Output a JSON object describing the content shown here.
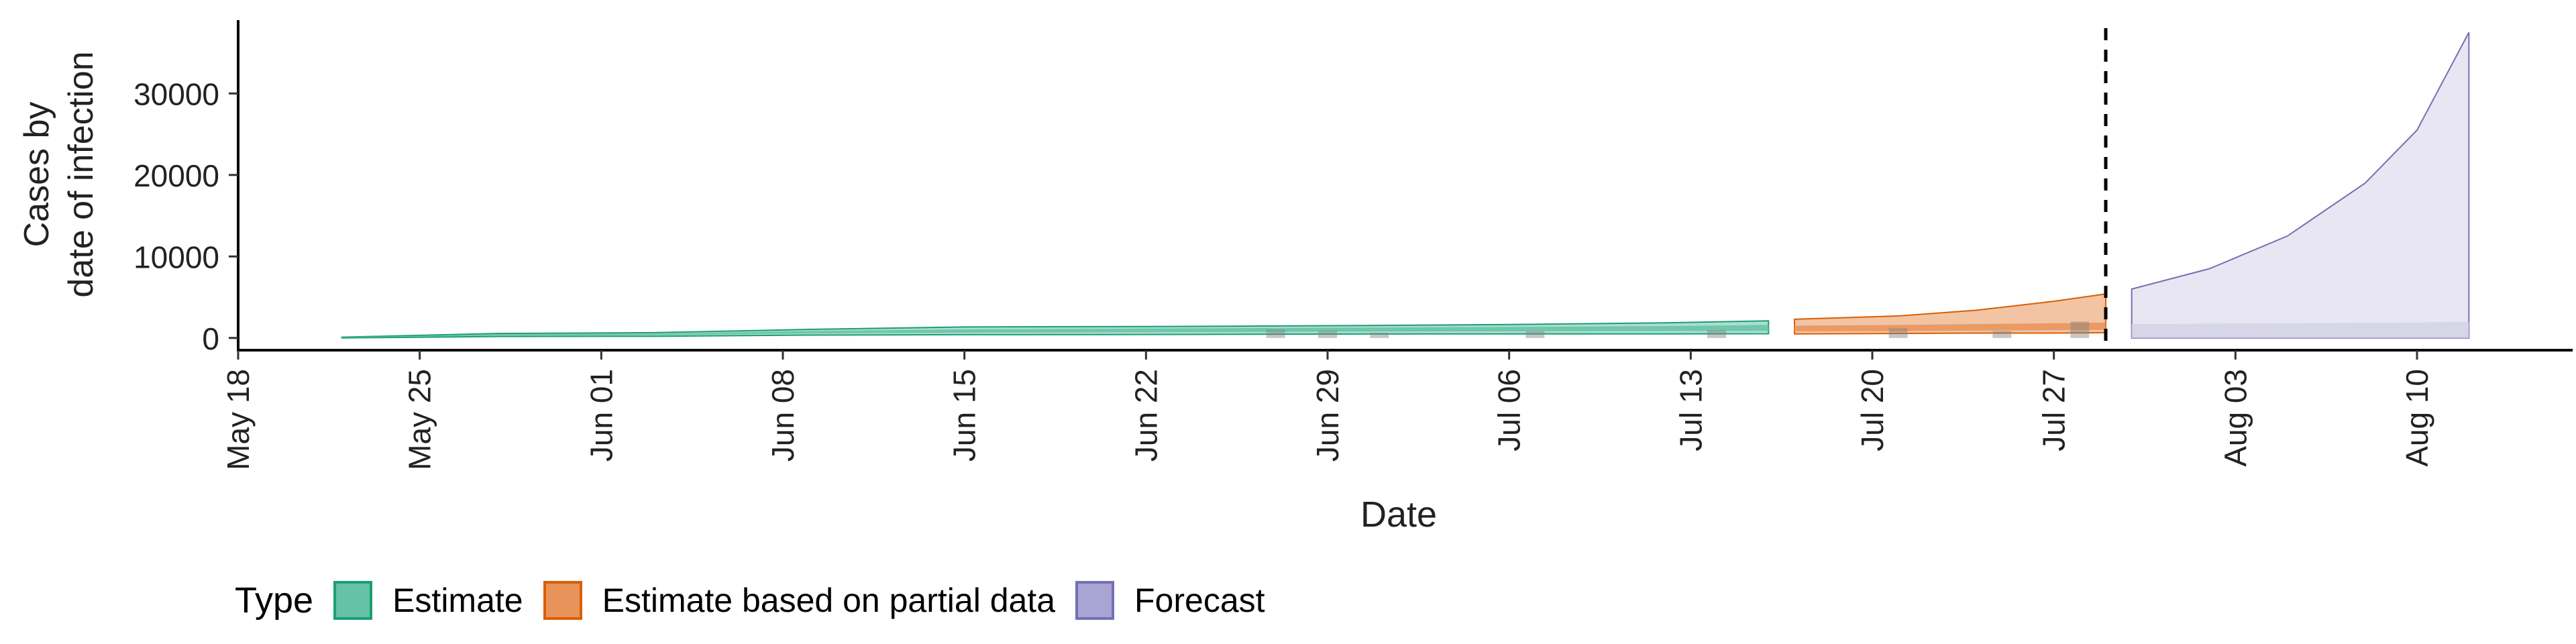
{
  "chart_data": {
    "type": "area",
    "title": "",
    "xlabel": "Date",
    "ylabel_lines": [
      "Cases by",
      "date of infection"
    ],
    "x_range": [
      "2020-05-18",
      "2020-08-16"
    ],
    "y_range": [
      -1500,
      39000
    ],
    "y_ticks": [
      0,
      10000,
      20000,
      30000
    ],
    "x_ticks": [
      {
        "date": "2020-05-18",
        "label": "May 18"
      },
      {
        "date": "2020-05-25",
        "label": "May 25"
      },
      {
        "date": "2020-06-01",
        "label": "Jun 01"
      },
      {
        "date": "2020-06-08",
        "label": "Jun 08"
      },
      {
        "date": "2020-06-15",
        "label": "Jun 15"
      },
      {
        "date": "2020-06-22",
        "label": "Jun 22"
      },
      {
        "date": "2020-06-29",
        "label": "Jun 29"
      },
      {
        "date": "2020-07-06",
        "label": "Jul 06"
      },
      {
        "date": "2020-07-13",
        "label": "Jul 13"
      },
      {
        "date": "2020-07-20",
        "label": "Jul 20"
      },
      {
        "date": "2020-07-27",
        "label": "Jul 27"
      },
      {
        "date": "2020-08-03",
        "label": "Aug 03"
      },
      {
        "date": "2020-08-10",
        "label": "Aug 10"
      }
    ],
    "report_date": "2020-07-29",
    "series": [
      {
        "name": "Estimate",
        "color": "#1b9e77",
        "fill": "#66c2a5",
        "points": [
          {
            "date": "2020-05-22",
            "lower": 0,
            "upper": 100,
            "mid_lower": 20,
            "mid_upper": 80
          },
          {
            "date": "2020-05-28",
            "lower": 180,
            "upper": 550,
            "mid_lower": 300,
            "mid_upper": 450
          },
          {
            "date": "2020-06-03",
            "lower": 200,
            "upper": 650,
            "mid_lower": 330,
            "mid_upper": 520
          },
          {
            "date": "2020-06-09",
            "lower": 350,
            "upper": 1050,
            "mid_lower": 550,
            "mid_upper": 850
          },
          {
            "date": "2020-06-15",
            "lower": 400,
            "upper": 1350,
            "mid_lower": 650,
            "mid_upper": 1050
          },
          {
            "date": "2020-06-22",
            "lower": 420,
            "upper": 1400,
            "mid_lower": 700,
            "mid_upper": 1150
          },
          {
            "date": "2020-06-29",
            "lower": 480,
            "upper": 1500,
            "mid_lower": 780,
            "mid_upper": 1250
          },
          {
            "date": "2020-07-06",
            "lower": 500,
            "upper": 1650,
            "mid_lower": 820,
            "mid_upper": 1350
          },
          {
            "date": "2020-07-12",
            "lower": 500,
            "upper": 1850,
            "mid_lower": 850,
            "mid_upper": 1450
          },
          {
            "date": "2020-07-16",
            "lower": 520,
            "upper": 2100,
            "mid_lower": 880,
            "mid_upper": 1600
          }
        ]
      },
      {
        "name": "Estimate based on partial data",
        "color": "#d95f02",
        "fill": "#e8935a",
        "points": [
          {
            "date": "2020-07-17",
            "lower": 500,
            "upper": 2300,
            "mid_lower": 800,
            "mid_upper": 1500
          },
          {
            "date": "2020-07-21",
            "lower": 550,
            "upper": 2700,
            "mid_lower": 850,
            "mid_upper": 1600
          },
          {
            "date": "2020-07-24",
            "lower": 600,
            "upper": 3400,
            "mid_lower": 900,
            "mid_upper": 1700
          },
          {
            "date": "2020-07-27",
            "lower": 600,
            "upper": 4500,
            "mid_lower": 950,
            "mid_upper": 1800
          },
          {
            "date": "2020-07-29",
            "lower": 650,
            "upper": 5400,
            "mid_lower": 1000,
            "mid_upper": 1900
          }
        ]
      },
      {
        "name": "Forecast",
        "color": "#7570b3",
        "fill": "#d4d2e8",
        "points": [
          {
            "date": "2020-07-30",
            "lower": 0,
            "upper": 6000,
            "mid_lower": 0,
            "mid_upper": 1700
          },
          {
            "date": "2020-08-02",
            "lower": 0,
            "upper": 8500,
            "mid_lower": 0,
            "mid_upper": 1750
          },
          {
            "date": "2020-08-05",
            "lower": 0,
            "upper": 12500,
            "mid_lower": 0,
            "mid_upper": 1800
          },
          {
            "date": "2020-08-08",
            "lower": 0,
            "upper": 19000,
            "mid_lower": 0,
            "mid_upper": 1850
          },
          {
            "date": "2020-08-10",
            "lower": 0,
            "upper": 25500,
            "mid_lower": 0,
            "mid_upper": 1900
          },
          {
            "date": "2020-08-12",
            "lower": 0,
            "upper": 37500,
            "mid_lower": 0,
            "mid_upper": 2000
          }
        ]
      }
    ],
    "observed_bars": [
      {
        "date": "2020-06-27",
        "value": 1050
      },
      {
        "date": "2020-06-29",
        "value": 900
      },
      {
        "date": "2020-07-01",
        "value": 650
      },
      {
        "date": "2020-07-07",
        "value": 850
      },
      {
        "date": "2020-07-14",
        "value": 950
      },
      {
        "date": "2020-07-21",
        "value": 1200
      },
      {
        "date": "2020-07-25",
        "value": 850
      },
      {
        "date": "2020-07-28",
        "value": 2000
      }
    ]
  },
  "legend": {
    "title": "Type",
    "items": [
      {
        "label": "Estimate",
        "fill": "#66c2a5",
        "stroke": "#1b9e77"
      },
      {
        "label": "Estimate based on partial data",
        "fill": "#e8935a",
        "stroke": "#d95f02"
      },
      {
        "label": "Forecast",
        "fill": "#a9a4d4",
        "stroke": "#7570b3"
      }
    ]
  }
}
